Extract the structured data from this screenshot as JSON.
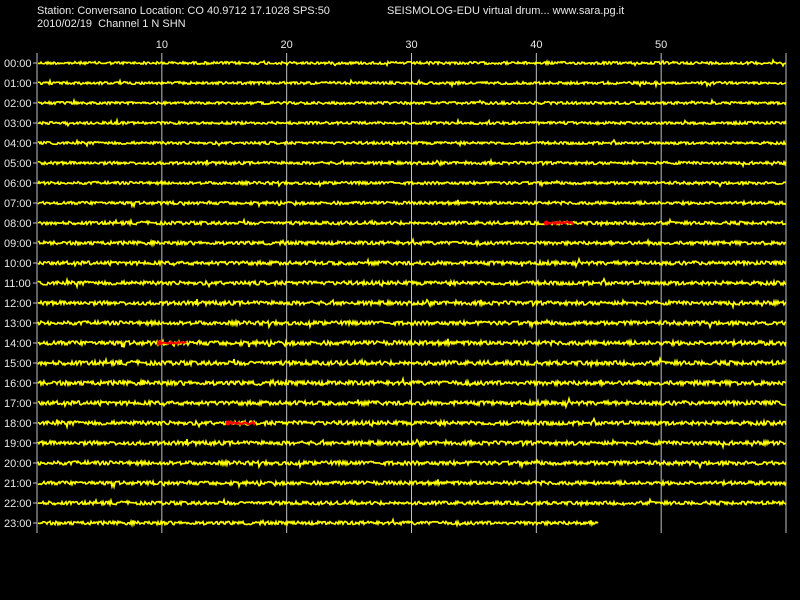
{
  "header": {
    "station_line": "Station: Conversano Location: CO 40.9712 17.1028 SPS:50",
    "date_line": "2010/02/19  Channel 1 N SHN",
    "title": "SEISMOLOG-EDU virtual drum... www.sara.pg.it"
  },
  "colors": {
    "background": "#000000",
    "trace": "#ffff00",
    "event": "#ff0000",
    "grid": "#c0c0c0",
    "text": "#e8e8e8"
  },
  "chart_data": {
    "type": "line",
    "title": "SEISMOLOG-EDU virtual drum... www.sara.pg.it",
    "xlabel": "",
    "ylabel": "",
    "xlim": [
      0,
      60
    ],
    "x_ticks": [
      10,
      20,
      30,
      40,
      50
    ],
    "grid": true,
    "hours": [
      "00:00",
      "01:00",
      "02:00",
      "03:00",
      "04:00",
      "05:00",
      "06:00",
      "07:00",
      "08:00",
      "09:00",
      "10:00",
      "11:00",
      "12:00",
      "13:00",
      "14:00",
      "15:00",
      "16:00",
      "17:00",
      "18:00",
      "19:00",
      "20:00",
      "21:00",
      "22:00",
      "23:00"
    ],
    "noise_level": [
      0.15,
      0.15,
      0.15,
      0.15,
      0.18,
      0.2,
      0.2,
      0.25,
      0.3,
      0.35,
      0.4,
      0.45,
      0.45,
      0.45,
      0.55,
      0.55,
      0.55,
      0.5,
      0.5,
      0.45,
      0.45,
      0.4,
      0.35,
      0.35
    ],
    "last_row_end_minute": 45,
    "events": [
      {
        "hour": "08:00",
        "start": 40.8,
        "end": 43.0
      },
      {
        "hour": "14:00",
        "start": 9.8,
        "end": 12.0
      },
      {
        "hour": "18:00",
        "start": 15.3,
        "end": 17.5
      }
    ]
  }
}
